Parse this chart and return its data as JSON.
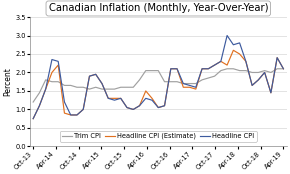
{
  "title": "Canadian Inflation (Monthly, Year-Over-Year)",
  "ylabel": "Percent",
  "ylim": [
    0.0,
    3.5
  ],
  "yticks": [
    0.0,
    0.5,
    1.0,
    1.5,
    2.0,
    2.5,
    3.0,
    3.5
  ],
  "x_labels": [
    "Oct-13",
    "Apr-14",
    "Oct-14",
    "Apr-15",
    "Oct-15",
    "Apr-16",
    "Oct-16",
    "Apr-17",
    "Oct-17",
    "Apr-18",
    "Oct-18",
    "Apr-19"
  ],
  "headline_cpi": [
    0.75,
    1.1,
    1.55,
    2.35,
    2.3,
    1.2,
    0.85,
    0.85,
    1.0,
    1.9,
    1.95,
    1.7,
    1.3,
    1.25,
    1.3,
    1.05,
    1.0,
    1.1,
    1.3,
    1.25,
    1.05,
    1.1,
    2.1,
    2.1,
    1.7,
    1.65,
    1.6,
    2.1,
    2.1,
    2.2,
    2.3,
    3.0,
    2.75,
    2.8,
    2.3,
    1.65,
    1.8,
    2.0,
    1.45,
    2.4,
    2.1
  ],
  "headline_cpi_est": [
    0.75,
    1.1,
    1.55,
    2.0,
    2.2,
    0.9,
    0.85,
    0.85,
    1.0,
    1.9,
    1.95,
    1.7,
    1.3,
    1.3,
    1.3,
    1.05,
    1.0,
    1.1,
    1.5,
    1.3,
    1.05,
    1.1,
    2.1,
    2.1,
    1.6,
    1.6,
    1.55,
    2.1,
    2.1,
    2.2,
    2.3,
    2.2,
    2.6,
    2.5,
    2.3,
    1.65,
    1.8,
    2.0,
    1.45,
    2.4,
    2.1
  ],
  "trim_cpi": [
    1.2,
    1.45,
    1.8,
    1.75,
    1.75,
    1.65,
    1.65,
    1.6,
    1.6,
    1.55,
    1.6,
    1.55,
    1.55,
    1.55,
    1.6,
    1.6,
    1.6,
    1.8,
    2.05,
    2.05,
    2.05,
    1.75,
    1.75,
    1.75,
    1.7,
    1.7,
    1.7,
    1.8,
    1.85,
    1.9,
    2.05,
    2.1,
    2.1,
    2.05,
    2.05,
    2.0,
    2.0,
    2.05,
    2.0,
    2.1,
    2.1
  ],
  "headline_color": "#3d5a9e",
  "estimate_color": "#e07020",
  "trim_color": "#a0a0a0",
  "plot_bg": "#ffffff",
  "fig_bg": "#ffffff",
  "grid_color": "#d8d8d8",
  "title_fontsize": 7.2,
  "legend_fontsize": 4.8,
  "ylabel_fontsize": 5.5,
  "tick_fontsize": 4.8
}
